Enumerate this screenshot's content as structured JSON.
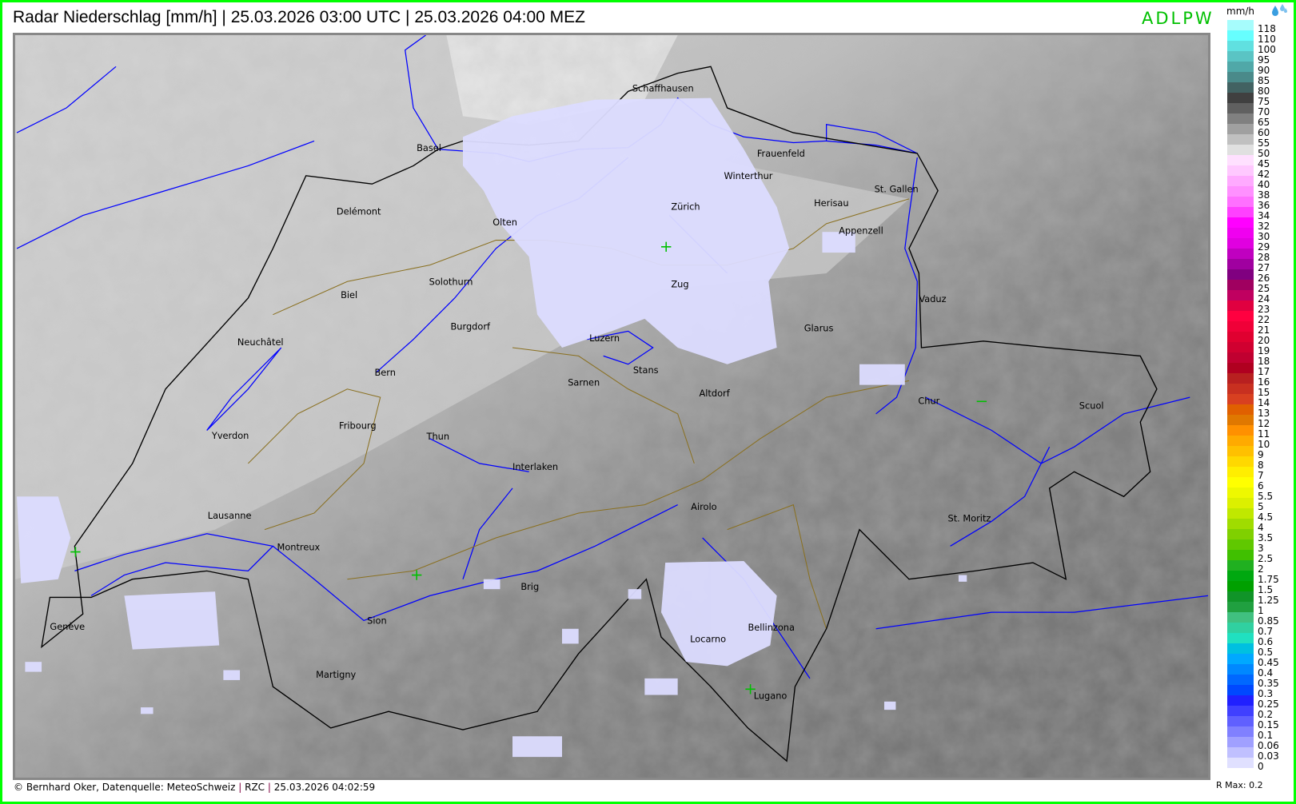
{
  "header": {
    "title": "Radar Niederschlag [mm/h] | 25.03.2026 03:00 UTC | 25.03.2026 04:00 MEZ",
    "brand": "ADLPW"
  },
  "footer": {
    "credit": "© Bernhard Oker, Datenquelle: MeteoSchweiz",
    "sep": "|",
    "product": "RZC",
    "timestamp": "25.03.2026 04:02:59"
  },
  "legend": {
    "unit": "mm/h",
    "icon": "raindrops-icon",
    "rmax": "R Max: 0.2",
    "entries": [
      {
        "label": "118",
        "color": "#a6fcfc"
      },
      {
        "label": "110",
        "color": "#66fefe"
      },
      {
        "label": "100",
        "color": "#60e0e0"
      },
      {
        "label": "95",
        "color": "#5ac4c4"
      },
      {
        "label": "90",
        "color": "#50a8a8"
      },
      {
        "label": "85",
        "color": "#4a8a8a"
      },
      {
        "label": "80",
        "color": "#426262"
      },
      {
        "label": "75",
        "color": "#404040"
      },
      {
        "label": "70",
        "color": "#606060"
      },
      {
        "label": "65",
        "color": "#808080"
      },
      {
        "label": "60",
        "color": "#a0a0a0"
      },
      {
        "label": "55",
        "color": "#c0c0c0"
      },
      {
        "label": "50",
        "color": "#e0e0e0"
      },
      {
        "label": "45",
        "color": "#ffe0ff"
      },
      {
        "label": "42",
        "color": "#ffc8ff"
      },
      {
        "label": "40",
        "color": "#ffaaff"
      },
      {
        "label": "38",
        "color": "#ff90ff"
      },
      {
        "label": "36",
        "color": "#ff70ff"
      },
      {
        "label": "34",
        "color": "#ff40ff"
      },
      {
        "label": "32",
        "color": "#ff00ff"
      },
      {
        "label": "30",
        "color": "#f000f0"
      },
      {
        "label": "29",
        "color": "#e000e0"
      },
      {
        "label": "28",
        "color": "#c000c0"
      },
      {
        "label": "27",
        "color": "#a000a0"
      },
      {
        "label": "26",
        "color": "#800080"
      },
      {
        "label": "25",
        "color": "#a00060"
      },
      {
        "label": "24",
        "color": "#c00060"
      },
      {
        "label": "23",
        "color": "#e00040"
      },
      {
        "label": "22",
        "color": "#ff0040"
      },
      {
        "label": "21",
        "color": "#f00038"
      },
      {
        "label": "20",
        "color": "#e00030"
      },
      {
        "label": "19",
        "color": "#d00030"
      },
      {
        "label": "18",
        "color": "#c00030"
      },
      {
        "label": "17",
        "color": "#b00020"
      },
      {
        "label": "16",
        "color": "#b82020"
      },
      {
        "label": "15",
        "color": "#c83020"
      },
      {
        "label": "14",
        "color": "#d84020"
      },
      {
        "label": "13",
        "color": "#e06000"
      },
      {
        "label": "12",
        "color": "#e07800"
      },
      {
        "label": "11",
        "color": "#ff9000"
      },
      {
        "label": "10",
        "color": "#ffaa00"
      },
      {
        "label": "9",
        "color": "#ffc000"
      },
      {
        "label": "8",
        "color": "#ffd800"
      },
      {
        "label": "7",
        "color": "#ffee00"
      },
      {
        "label": "6",
        "color": "#ffff00"
      },
      {
        "label": "5.5",
        "color": "#eef800"
      },
      {
        "label": "5",
        "color": "#dcf000"
      },
      {
        "label": "4.5",
        "color": "#c0e800"
      },
      {
        "label": "4",
        "color": "#a0dc00"
      },
      {
        "label": "3.5",
        "color": "#80d000"
      },
      {
        "label": "3",
        "color": "#60c800"
      },
      {
        "label": "2.5",
        "color": "#40c000"
      },
      {
        "label": "2",
        "color": "#20b020"
      },
      {
        "label": "1.75",
        "color": "#00a810"
      },
      {
        "label": "1.5",
        "color": "#00a000"
      },
      {
        "label": "1.25",
        "color": "#109428"
      },
      {
        "label": "1",
        "color": "#20a040"
      },
      {
        "label": "0.85",
        "color": "#40c080"
      },
      {
        "label": "0.7",
        "color": "#30d0a0"
      },
      {
        "label": "0.6",
        "color": "#20e0c0"
      },
      {
        "label": "0.5",
        "color": "#00c0e0"
      },
      {
        "label": "0.45",
        "color": "#00a8ff"
      },
      {
        "label": "0.4",
        "color": "#0088ff"
      },
      {
        "label": "0.35",
        "color": "#0068ff"
      },
      {
        "label": "0.3",
        "color": "#0048ff"
      },
      {
        "label": "0.25",
        "color": "#2020ff"
      },
      {
        "label": "0.2",
        "color": "#4040ff"
      },
      {
        "label": "0.15",
        "color": "#6060ff"
      },
      {
        "label": "0.1",
        "color": "#8080ff"
      },
      {
        "label": "0.06",
        "color": "#a0a0ff"
      },
      {
        "label": "0.03",
        "color": "#c0c0ff"
      },
      {
        "label": "0",
        "color": "#e0e0ff"
      }
    ]
  },
  "map": {
    "precip_color": "#dcdcff",
    "river_color": "#0000ff",
    "border_color": "#000000",
    "canton_color": "#8a7020",
    "cities": [
      "Basel",
      "Frauenfeld",
      "Winterthur",
      "St. Gallen",
      "Delémont",
      "Olten",
      "Zürich",
      "Herisau",
      "Appenzell",
      "Solothurn",
      "Biel",
      "Zug",
      "Vaduz",
      "Burgdorf",
      "Neuchâtel",
      "Luzern",
      "Glarus",
      "Bern",
      "Stans",
      "Sarnen",
      "Altdorf",
      "Chur",
      "Scuol",
      "Fribourg",
      "Yverdon",
      "Thun",
      "Interlaken",
      "Airolo",
      "St. Moritz",
      "Lausanne",
      "Montreux",
      "Brig",
      "Sion",
      "Bellinzona",
      "Locarno",
      "Genève",
      "Martigny",
      "Lugano",
      "Schaffhausen"
    ]
  }
}
